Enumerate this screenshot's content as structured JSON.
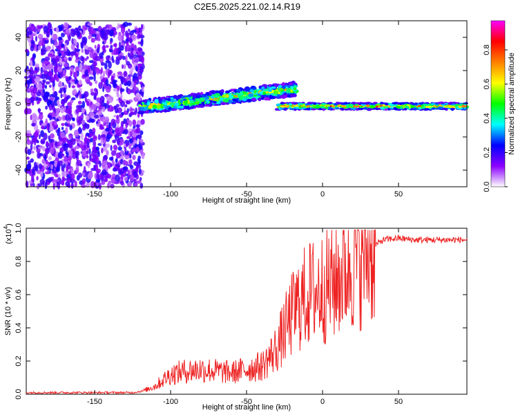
{
  "figure_title": "C2E5.2025.221.02.14.R19",
  "colorbar": {
    "label": "Normalized spectral amplitude",
    "ticks": [
      "0.0",
      "0.2",
      "0.4",
      "0.6",
      "0.8"
    ],
    "range": [
      0,
      0.97
    ],
    "colormap": [
      "#ffffff",
      "#8b00ff",
      "#0000ff",
      "#00ffff",
      "#00ff00",
      "#ffff00",
      "#ff8000",
      "#ff0000",
      "#ff00ff"
    ]
  },
  "chart_data": [
    {
      "type": "heatmap",
      "title": "C2E5.2025.221.02.14.R19",
      "xlabel": "Height of straight line (km)",
      "ylabel": "Frequency (Hz)",
      "xlim": [
        -195,
        95
      ],
      "ylim": [
        -50,
        50
      ],
      "xticks": [
        -150,
        -100,
        -50,
        0,
        50
      ],
      "yticks": [
        -40,
        -20,
        0,
        20,
        40
      ],
      "grid": false,
      "regions": [
        {
          "name": "noise",
          "x": [
            -195,
            -118
          ],
          "y": [
            -50,
            48
          ],
          "amplitude": 0.12
        },
        {
          "name": "rising-line",
          "x": [
            -120,
            -17
          ],
          "y_start": -2,
          "y_end": 9,
          "half_width": 4,
          "amplitude": 0.55
        },
        {
          "name": "flat-line",
          "x": [
            -30,
            95
          ],
          "y": -1.5,
          "half_width": 2,
          "amplitude": 0.7
        }
      ]
    },
    {
      "type": "line",
      "xlabel": "Height of straight line (km)",
      "ylabel": "SNR (10 * v/v)",
      "ylabel_multiplier": "(x10",
      "ylabel_exponent": "4",
      "ylabel_suffix": ")",
      "xlim": [
        -195,
        95
      ],
      "ylim": [
        0,
        1.0
      ],
      "xticks": [
        -150,
        -100,
        -50,
        0,
        50
      ],
      "yticks": [
        "0.0",
        "0.2",
        "0.4",
        "0.6",
        "0.8",
        "1.0"
      ],
      "color": "#ee2222",
      "series": [
        {
          "x": [
            -195,
            -180,
            -160,
            -140,
            -125,
            -118,
            -110,
            -100,
            -90,
            -80,
            -70,
            -60,
            -50,
            -40,
            -35,
            -30,
            -25,
            -20,
            -15,
            -10,
            -5,
            0,
            5,
            10,
            15,
            20,
            25,
            30,
            35,
            40,
            50,
            60,
            70,
            80,
            90,
            95
          ],
          "y": [
            0.01,
            0.01,
            0.01,
            0.01,
            0.01,
            0.02,
            0.05,
            0.12,
            0.14,
            0.15,
            0.14,
            0.13,
            0.15,
            0.17,
            0.22,
            0.28,
            0.38,
            0.48,
            0.55,
            0.6,
            0.62,
            0.64,
            0.66,
            0.7,
            0.76,
            0.8,
            0.84,
            0.87,
            0.9,
            0.93,
            0.94,
            0.93,
            0.93,
            0.93,
            0.93,
            0.93
          ]
        }
      ]
    }
  ]
}
